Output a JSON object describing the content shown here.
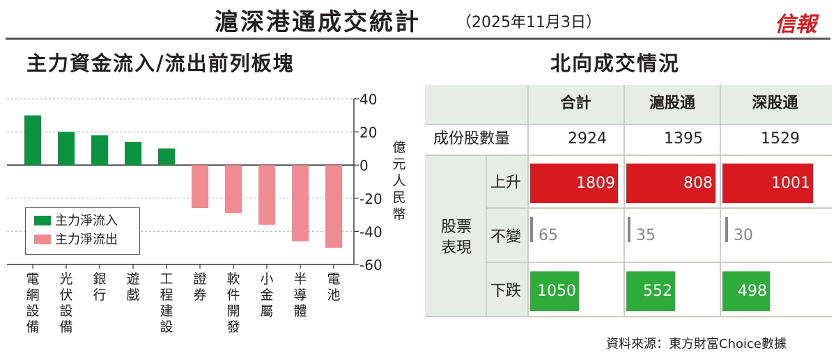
{
  "header": {
    "title": "滬深港通成交統計",
    "date": "（2025年11月3日）",
    "brand": "信報"
  },
  "left": {
    "title": "主力資金流入/流出前列板塊"
  },
  "chart_data": {
    "type": "bar",
    "title": "主力資金流入/流出前列板塊",
    "ylabel": "億元人民幣",
    "ylim": [
      -60,
      40
    ],
    "yticks": [
      "40",
      "20",
      "0",
      "-20",
      "-40",
      "-60"
    ],
    "grid": true,
    "legend_position": "bottom-left",
    "categories": [
      "電網設備",
      "光伏設備",
      "銀行",
      "遊戲",
      "工程建設",
      "證券",
      "軟件開發",
      "小金屬",
      "半導體",
      "電池"
    ],
    "values": [
      30,
      20,
      18,
      14,
      10,
      -26,
      -29,
      -36,
      -46,
      -50
    ],
    "series": [
      {
        "name": "主力淨流入",
        "color": "#0a9340",
        "values": [
          30,
          20,
          18,
          14,
          10,
          null,
          null,
          null,
          null,
          null
        ]
      },
      {
        "name": "主力淨流出",
        "color": "#f08b92",
        "values": [
          null,
          null,
          null,
          null,
          null,
          -26,
          -29,
          -36,
          -46,
          -50
        ]
      }
    ]
  },
  "right": {
    "title": "北向成交情況",
    "columns": [
      "合計",
      "滬股通",
      "深股通"
    ],
    "row_constituents": {
      "label": "成份股數量",
      "values": [
        "2924",
        "1395",
        "1529"
      ]
    },
    "group_label": "股票表現",
    "rows": [
      {
        "label": "上升",
        "values": [
          "1809",
          "808",
          "1001"
        ],
        "color": "#d71920"
      },
      {
        "label": "不變",
        "values": [
          "65",
          "35",
          "30"
        ],
        "color": "#888888"
      },
      {
        "label": "下跌",
        "values": [
          "1050",
          "552",
          "498"
        ],
        "color": "#2eab3a"
      }
    ]
  },
  "source": "資料來源：東方財富Choice數據"
}
